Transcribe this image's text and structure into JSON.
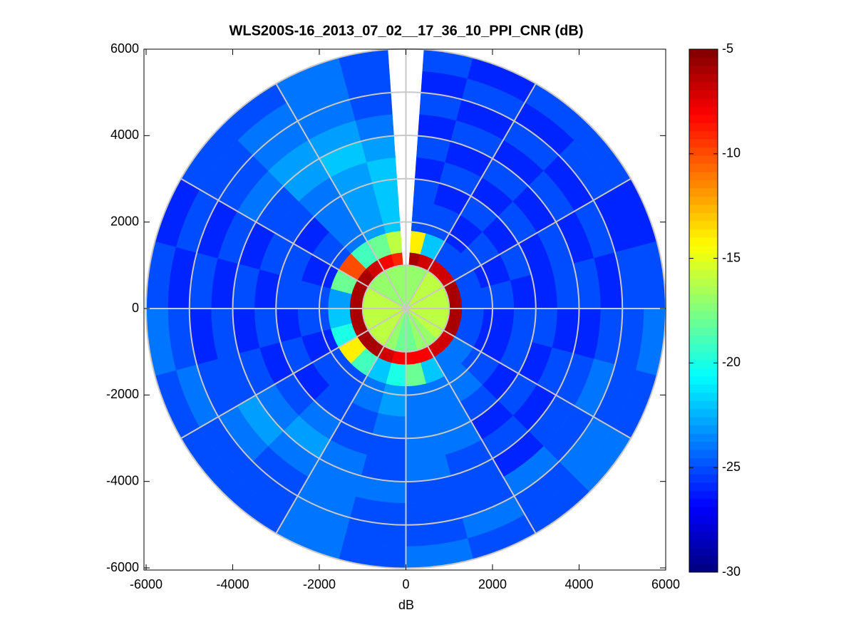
{
  "chart_data": {
    "type": "polar-heatmap",
    "title": "WLS200S-16_2013_07_02__17_36_10_PPI_CNR (dB)",
    "x_label": "dB",
    "xlim": [
      -6000,
      6000
    ],
    "ylim": [
      -6000,
      6000
    ],
    "xticks": [
      -6000,
      -4000,
      -2000,
      0,
      2000,
      4000,
      6000
    ],
    "yticks": [
      -6000,
      -4000,
      -2000,
      0,
      2000,
      4000,
      6000
    ],
    "clim": [
      -30,
      -5
    ],
    "cticks": [
      -30,
      -25,
      -20,
      -15,
      -10,
      -5
    ],
    "colormap": "jet",
    "polar_grid": true,
    "azimuth_edges": [
      -4,
      4,
      15,
      30,
      45,
      60,
      75,
      90,
      105,
      120,
      135,
      150,
      165,
      180,
      195,
      210,
      225,
      240,
      255,
      270,
      285,
      300,
      315,
      330,
      345,
      356
    ],
    "range_edges": [
      0,
      1000,
      1300,
      1800,
      2500,
      3000,
      3500,
      4000,
      4500,
      5000,
      5500,
      6000
    ],
    "values": [
      [
        -17,
        -17,
        -17,
        -16,
        -16,
        -16,
        -16,
        -16,
        -16,
        -16,
        -17,
        -17,
        -18,
        -18,
        -17,
        -16,
        -16,
        -16,
        -16,
        -16,
        -16,
        -17,
        -17,
        -17,
        -17
      ],
      [
        null,
        -6,
        -7,
        -7,
        -7,
        -6,
        -6,
        -6,
        -6,
        -7,
        -7,
        -8,
        -8,
        -8,
        -7,
        -6,
        -6,
        -6,
        -6,
        -6,
        -6,
        -6,
        -7,
        -8,
        -9
      ],
      [
        null,
        -14,
        -22,
        -25,
        -25,
        -25,
        -25,
        -25,
        -25,
        -24,
        -24,
        -22,
        -18,
        -20,
        -22,
        -19,
        -14,
        -20,
        -22,
        -23,
        -18,
        -10,
        -19,
        -18,
        -16
      ],
      [
        null,
        -25,
        -25,
        -26,
        -25,
        -26,
        -25,
        -26,
        -26,
        -25,
        -24,
        -24,
        -24,
        -23,
        -24,
        -25,
        -25,
        -26,
        -25,
        -25,
        -26,
        -25,
        -24,
        -23,
        -22
      ],
      [
        null,
        -25,
        -26,
        -25,
        -26,
        -25,
        -26,
        -25,
        -25,
        -26,
        -25,
        -24,
        -24,
        -24,
        -25,
        -25,
        -26,
        -25,
        -26,
        -25,
        -25,
        -26,
        -24,
        -23,
        -22
      ],
      [
        null,
        -26,
        -25,
        -26,
        -25,
        -26,
        -26,
        -25,
        -26,
        -25,
        -26,
        -24,
        -24,
        -25,
        -25,
        -24,
        -25,
        -26,
        -25,
        -26,
        -25,
        -25,
        -24,
        -23,
        -22
      ],
      [
        null,
        -25,
        -26,
        -25,
        -26,
        -25,
        -25,
        -26,
        -25,
        -26,
        -25,
        -25,
        -24,
        -25,
        -24,
        -23,
        -24,
        -25,
        -26,
        -25,
        -26,
        -25,
        -23,
        -22,
        -23
      ],
      [
        null,
        -26,
        -25,
        -26,
        -25,
        -26,
        -25,
        -26,
        -25,
        -25,
        -26,
        -25,
        -25,
        -24,
        -24,
        -24,
        -23,
        -25,
        -25,
        -26,
        -25,
        -24,
        -23,
        -23,
        -24
      ],
      [
        null,
        -25,
        -26,
        -25,
        -26,
        -25,
        -26,
        -25,
        -24,
        -25,
        -24,
        -25,
        -25,
        -25,
        -24,
        -25,
        -24,
        -25,
        -26,
        -25,
        -26,
        -25,
        -24,
        -24,
        -25
      ],
      [
        null,
        -26,
        -25,
        -26,
        -25,
        -26,
        -25,
        -25,
        -25,
        -24,
        -25,
        -24,
        -25,
        -25,
        -24,
        -25,
        -25,
        -24,
        -25,
        -26,
        -25,
        -25,
        -24,
        -24,
        -25
      ],
      [
        null,
        -25,
        -26,
        -25,
        -25,
        -26,
        -25,
        -24,
        -25,
        -24,
        -25,
        -25,
        -24,
        -25,
        -24,
        -25,
        -25,
        -25,
        -24,
        -25,
        -26,
        -25,
        -25,
        -24,
        -25
      ]
    ]
  }
}
